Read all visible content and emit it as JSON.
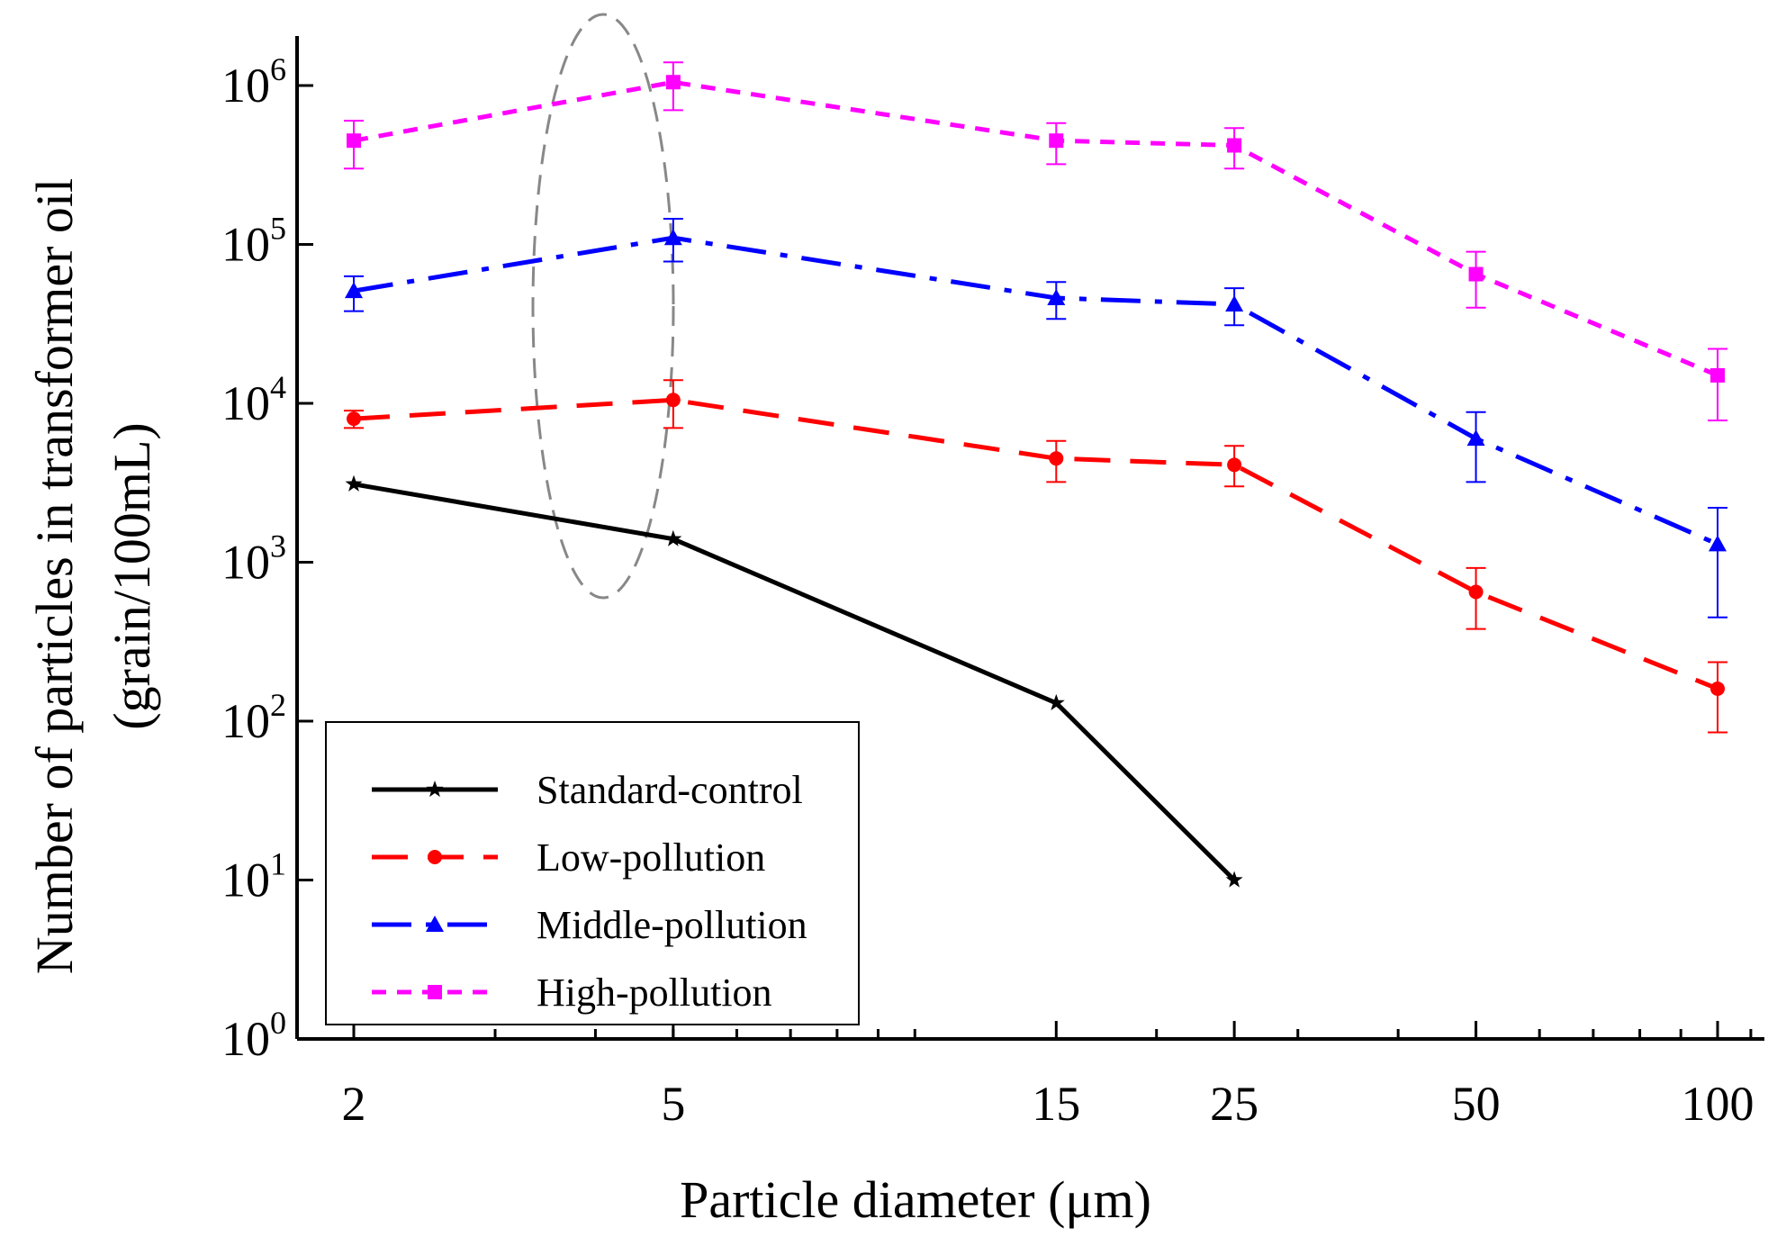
{
  "chart_data": {
    "type": "line",
    "xlabel": "Particle diameter (μm)",
    "ylabel_line1": "Number of particles in transformer oil",
    "ylabel_line2": "(grain/100mL)",
    "x_scale": "log",
    "y_scale": "log",
    "x": [
      2,
      5,
      15,
      25,
      50,
      100
    ],
    "x_tick_labels": [
      "2",
      "5",
      "15",
      "25",
      "50",
      "100"
    ],
    "y_tick_exponents": [
      0,
      1,
      2,
      3,
      4,
      5,
      6
    ],
    "ylim": [
      1,
      1000000
    ],
    "grid": false,
    "legend_position": "bottom-left",
    "series": [
      {
        "name": "Standard-control",
        "color": "#000000",
        "dash": "solid",
        "marker": "star",
        "points": [
          [
            2,
            3100
          ],
          [
            5,
            1400
          ],
          [
            15,
            130
          ],
          [
            25,
            10
          ]
        ],
        "errors": []
      },
      {
        "name": "Low-pollution",
        "color": "#ff0000",
        "dash": "dashed",
        "marker": "circle",
        "points": [
          [
            2,
            8000
          ],
          [
            5,
            10500
          ],
          [
            15,
            4500
          ],
          [
            25,
            4100
          ],
          [
            50,
            650
          ],
          [
            100,
            160
          ]
        ],
        "errors": [
          [
            7000,
            9000
          ],
          [
            7000,
            14000
          ],
          [
            3200,
            5800
          ],
          [
            3000,
            5400
          ],
          [
            380,
            920
          ],
          [
            85,
            235
          ]
        ]
      },
      {
        "name": "Middle-pollution",
        "color": "#0000ff",
        "dash": "dash-dot",
        "marker": "triangle",
        "points": [
          [
            2,
            51000
          ],
          [
            5,
            110000
          ],
          [
            15,
            46000
          ],
          [
            25,
            42000
          ],
          [
            50,
            6000
          ],
          [
            100,
            1300
          ]
        ],
        "errors": [
          [
            38000,
            63000
          ],
          [
            78000,
            145000
          ],
          [
            34000,
            58000
          ],
          [
            31000,
            53000
          ],
          [
            3200,
            8800
          ],
          [
            450,
            2200
          ]
        ]
      },
      {
        "name": "High-pollution",
        "color": "#ff00ff",
        "dash": "dotted",
        "marker": "square",
        "points": [
          [
            2,
            450000
          ],
          [
            5,
            1050000
          ],
          [
            15,
            450000
          ],
          [
            25,
            420000
          ],
          [
            50,
            65000
          ],
          [
            100,
            15000
          ]
        ],
        "errors": [
          [
            300000,
            600000
          ],
          [
            700000,
            1400000
          ],
          [
            320000,
            580000
          ],
          [
            300000,
            540000
          ],
          [
            40000,
            90000
          ],
          [
            7800,
            22000
          ]
        ]
      }
    ]
  }
}
